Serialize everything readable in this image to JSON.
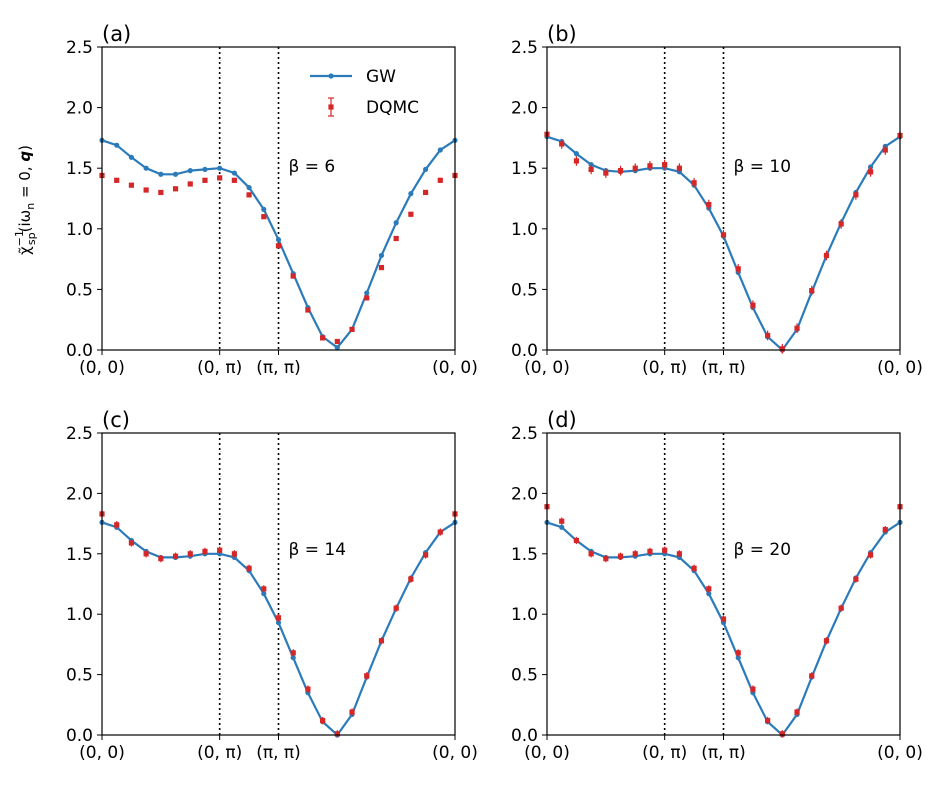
{
  "colors": {
    "gw": "#2b7bba",
    "dqmc": "#d62728",
    "vline": "#000000"
  },
  "ylabel": "χ̃⁻¹sp(iωn = 0, q)",
  "ylabel_parts": {
    "chi": "χ̃",
    "sup": "−1",
    "sub": "sp",
    "args": "(iω",
    "n": "n",
    "rest": " = 0, ",
    "q": "q",
    "close": ")"
  },
  "chart_data": [
    {
      "type": "line",
      "panel_label": "(a)",
      "annotation": "β = 6",
      "legend": {
        "show": true,
        "placement": "top-center",
        "entries": [
          "GW",
          "DQMC"
        ]
      },
      "ylim": [
        0,
        2.5
      ],
      "yticks": [
        "0.0",
        "0.5",
        "1.0",
        "1.5",
        "2.0",
        "2.5"
      ],
      "xlim": [
        0,
        24
      ],
      "xticks": [
        {
          "x": 0,
          "label": "(0, 0)"
        },
        {
          "x": 8,
          "label": "(0, π)"
        },
        {
          "x": 12,
          "label": "(π, π)"
        },
        {
          "x": 24,
          "label": "(0, 0)"
        }
      ],
      "vlines": [
        8,
        12
      ],
      "grid": false,
      "series": [
        {
          "name": "GW",
          "x": [
            0,
            1,
            2,
            3,
            4,
            5,
            6,
            7,
            8,
            9,
            10,
            11,
            12,
            13,
            14,
            15,
            16,
            17,
            18,
            19,
            20,
            21,
            22,
            23,
            24
          ],
          "values": [
            1.73,
            1.69,
            1.59,
            1.5,
            1.45,
            1.45,
            1.48,
            1.49,
            1.5,
            1.46,
            1.34,
            1.16,
            0.91,
            0.63,
            0.35,
            0.11,
            0.02,
            0.17,
            0.47,
            0.78,
            1.05,
            1.29,
            1.49,
            1.65,
            1.73
          ]
        },
        {
          "name": "DQMC",
          "x": [
            0,
            1,
            2,
            3,
            4,
            5,
            6,
            7,
            8,
            9,
            10,
            11,
            12,
            13,
            14,
            15,
            16,
            17,
            18,
            19,
            20,
            21,
            22,
            23,
            24
          ],
          "values": [
            1.44,
            1.4,
            1.36,
            1.32,
            1.3,
            1.33,
            1.37,
            1.4,
            1.42,
            1.4,
            1.28,
            1.1,
            0.86,
            0.61,
            0.33,
            0.1,
            0.07,
            0.17,
            0.43,
            0.68,
            0.92,
            1.12,
            1.3,
            1.4,
            1.44
          ],
          "error": 0.02
        }
      ]
    },
    {
      "type": "line",
      "panel_label": "(b)",
      "annotation": "β = 10",
      "legend": {
        "show": false
      },
      "ylim": [
        0,
        2.5
      ],
      "yticks": [
        "0.0",
        "0.5",
        "1.0",
        "1.5",
        "2.0",
        "2.5"
      ],
      "xlim": [
        0,
        24
      ],
      "xticks": [
        {
          "x": 0,
          "label": "(0, 0)"
        },
        {
          "x": 8,
          "label": "(0, π)"
        },
        {
          "x": 12,
          "label": "(π, π)"
        },
        {
          "x": 24,
          "label": "(0, 0)"
        }
      ],
      "vlines": [
        8,
        12
      ],
      "grid": false,
      "series": [
        {
          "name": "GW",
          "x": [
            0,
            1,
            2,
            3,
            4,
            5,
            6,
            7,
            8,
            9,
            10,
            11,
            12,
            13,
            14,
            15,
            16,
            17,
            18,
            19,
            20,
            21,
            22,
            23,
            24
          ],
          "values": [
            1.76,
            1.72,
            1.62,
            1.53,
            1.48,
            1.47,
            1.48,
            1.5,
            1.5,
            1.47,
            1.36,
            1.17,
            0.94,
            0.64,
            0.35,
            0.11,
            0.0,
            0.17,
            0.48,
            0.78,
            1.05,
            1.3,
            1.51,
            1.68,
            1.76
          ]
        },
        {
          "name": "DQMC",
          "x": [
            0,
            1,
            2,
            3,
            4,
            5,
            6,
            7,
            8,
            9,
            10,
            11,
            12,
            13,
            14,
            15,
            16,
            17,
            18,
            19,
            20,
            21,
            22,
            23,
            24
          ],
          "values": [
            1.78,
            1.7,
            1.56,
            1.49,
            1.46,
            1.48,
            1.5,
            1.52,
            1.53,
            1.5,
            1.38,
            1.2,
            0.95,
            0.67,
            0.37,
            0.12,
            0.01,
            0.18,
            0.49,
            0.78,
            1.04,
            1.28,
            1.47,
            1.65,
            1.77
          ],
          "error": 0.04
        }
      ]
    },
    {
      "type": "line",
      "panel_label": "(c)",
      "annotation": "β = 14",
      "legend": {
        "show": false
      },
      "ylim": [
        0,
        2.5
      ],
      "yticks": [
        "0.0",
        "0.5",
        "1.0",
        "1.5",
        "2.0",
        "2.5"
      ],
      "xlim": [
        0,
        24
      ],
      "xticks": [
        {
          "x": 0,
          "label": "(0, 0)"
        },
        {
          "x": 8,
          "label": "(0, π)"
        },
        {
          "x": 12,
          "label": "(π, π)"
        },
        {
          "x": 24,
          "label": "(0, 0)"
        }
      ],
      "vlines": [
        8,
        12
      ],
      "grid": false,
      "series": [
        {
          "name": "GW",
          "x": [
            0,
            1,
            2,
            3,
            4,
            5,
            6,
            7,
            8,
            9,
            10,
            11,
            12,
            13,
            14,
            15,
            16,
            17,
            18,
            19,
            20,
            21,
            22,
            23,
            24
          ],
          "values": [
            1.76,
            1.72,
            1.61,
            1.52,
            1.47,
            1.47,
            1.48,
            1.5,
            1.5,
            1.47,
            1.36,
            1.17,
            0.93,
            0.64,
            0.35,
            0.11,
            0.0,
            0.17,
            0.48,
            0.78,
            1.05,
            1.3,
            1.51,
            1.68,
            1.76
          ]
        },
        {
          "name": "DQMC",
          "x": [
            0,
            1,
            2,
            3,
            4,
            5,
            6,
            7,
            8,
            9,
            10,
            11,
            12,
            13,
            14,
            15,
            16,
            17,
            18,
            19,
            20,
            21,
            22,
            23,
            24
          ],
          "values": [
            1.83,
            1.74,
            1.59,
            1.5,
            1.46,
            1.48,
            1.5,
            1.52,
            1.53,
            1.5,
            1.38,
            1.21,
            0.97,
            0.68,
            0.38,
            0.12,
            0.01,
            0.19,
            0.49,
            0.78,
            1.05,
            1.29,
            1.49,
            1.68,
            1.83
          ],
          "error": 0.03
        }
      ]
    },
    {
      "type": "line",
      "panel_label": "(d)",
      "annotation": "β = 20",
      "legend": {
        "show": false
      },
      "ylim": [
        0,
        2.5
      ],
      "yticks": [
        "0.0",
        "0.5",
        "1.0",
        "1.5",
        "2.0",
        "2.5"
      ],
      "xlim": [
        0,
        24
      ],
      "xticks": [
        {
          "x": 0,
          "label": "(0, 0)"
        },
        {
          "x": 8,
          "label": "(0, π)"
        },
        {
          "x": 12,
          "label": "(π, π)"
        },
        {
          "x": 24,
          "label": "(0, 0)"
        }
      ],
      "vlines": [
        8,
        12
      ],
      "grid": false,
      "series": [
        {
          "name": "GW",
          "x": [
            0,
            1,
            2,
            3,
            4,
            5,
            6,
            7,
            8,
            9,
            10,
            11,
            12,
            13,
            14,
            15,
            16,
            17,
            18,
            19,
            20,
            21,
            22,
            23,
            24
          ],
          "values": [
            1.76,
            1.72,
            1.61,
            1.52,
            1.47,
            1.47,
            1.48,
            1.5,
            1.5,
            1.47,
            1.36,
            1.17,
            0.93,
            0.64,
            0.35,
            0.11,
            0.0,
            0.17,
            0.48,
            0.78,
            1.05,
            1.3,
            1.51,
            1.68,
            1.76
          ]
        },
        {
          "name": "DQMC",
          "x": [
            0,
            1,
            2,
            3,
            4,
            5,
            6,
            7,
            8,
            9,
            10,
            11,
            12,
            13,
            14,
            15,
            16,
            17,
            18,
            19,
            20,
            21,
            22,
            23,
            24
          ],
          "values": [
            1.89,
            1.77,
            1.61,
            1.5,
            1.46,
            1.48,
            1.5,
            1.52,
            1.53,
            1.5,
            1.38,
            1.21,
            0.96,
            0.68,
            0.38,
            0.12,
            0.01,
            0.19,
            0.49,
            0.78,
            1.05,
            1.29,
            1.49,
            1.7,
            1.89
          ],
          "error": 0.03
        }
      ]
    }
  ]
}
